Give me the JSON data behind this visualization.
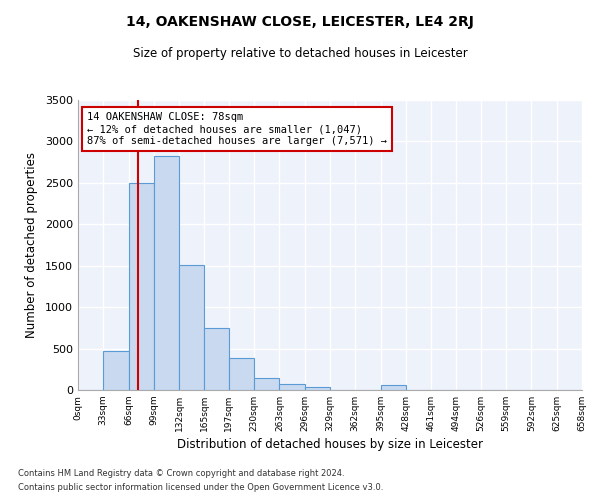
{
  "title": "14, OAKENSHAW CLOSE, LEICESTER, LE4 2RJ",
  "subtitle": "Size of property relative to detached houses in Leicester",
  "xlabel": "Distribution of detached houses by size in Leicester",
  "ylabel": "Number of detached properties",
  "bar_edges": [
    0,
    33,
    66,
    99,
    132,
    165,
    197,
    230,
    263,
    296,
    329,
    362,
    395,
    428,
    461,
    494,
    526,
    559,
    592,
    625,
    658
  ],
  "bar_heights": [
    5,
    470,
    2500,
    2820,
    1510,
    750,
    390,
    150,
    75,
    35,
    0,
    0,
    55,
    0,
    0,
    0,
    0,
    0,
    0,
    0
  ],
  "bar_color": "#c9d9f0",
  "bar_edgecolor": "#5b9bd5",
  "tick_labels": [
    "0sqm",
    "33sqm",
    "66sqm",
    "99sqm",
    "132sqm",
    "165sqm",
    "197sqm",
    "230sqm",
    "263sqm",
    "296sqm",
    "329sqm",
    "362sqm",
    "395sqm",
    "428sqm",
    "461sqm",
    "494sqm",
    "526sqm",
    "559sqm",
    "592sqm",
    "625sqm",
    "658sqm"
  ],
  "property_value": 78,
  "vline_color": "#cc0000",
  "annotation_text": "14 OAKENSHAW CLOSE: 78sqm\n← 12% of detached houses are smaller (1,047)\n87% of semi-detached houses are larger (7,571) →",
  "annotation_boxcolor": "white",
  "annotation_edgecolor": "#cc0000",
  "ylim": [
    0,
    3500
  ],
  "yticks": [
    0,
    500,
    1000,
    1500,
    2000,
    2500,
    3000,
    3500
  ],
  "background_color": "#eef2fb",
  "grid_color": "white",
  "footnote1": "Contains HM Land Registry data © Crown copyright and database right 2024.",
  "footnote2": "Contains public sector information licensed under the Open Government Licence v3.0."
}
